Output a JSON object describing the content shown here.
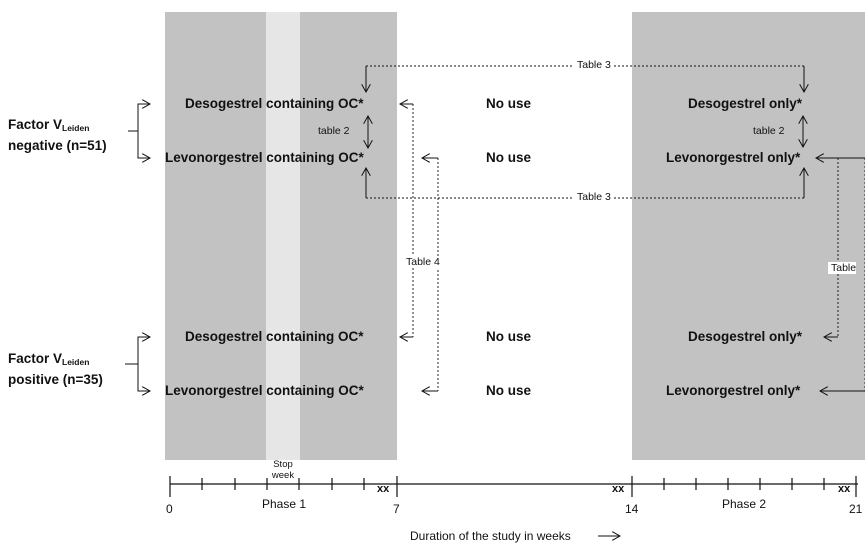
{
  "groups": {
    "negative": {
      "line1_prefix": "Factor V",
      "line1_sub": "Leiden",
      "line2": "negative (n=51)"
    },
    "positive": {
      "line1_prefix": "Factor V",
      "line1_sub": "Leiden",
      "line2": "positive (n=35)"
    }
  },
  "phase1_rows": {
    "neg_deso": "Desogestrel containing OC*",
    "neg_levo": "Levonorgestrel containing OC*",
    "pos_deso": "Desogestrel containing OC*",
    "pos_levo": "Levonorgestrel containing OC*"
  },
  "washout_rows": {
    "neg_deso": "No use",
    "neg_levo": "No use",
    "pos_deso": "No use",
    "pos_levo": "No use"
  },
  "phase2_rows": {
    "neg_deso": "Desogestrel only*",
    "neg_levo": "Levonorgestrel only*",
    "pos_deso": "Desogestrel only*",
    "pos_levo": "Levonorgestrel only*"
  },
  "table_refs": {
    "table3_top": "Table 3",
    "table3_bottom": "Table 3",
    "table2_left": "table 2",
    "table2_right": "table 2",
    "table4": "Table 4",
    "table_right": "Table"
  },
  "stop_week": {
    "line1": "Stop",
    "line2": "week"
  },
  "axis": {
    "ticks": [
      "0",
      "7",
      "14",
      "21"
    ],
    "phase1": "Phase 1",
    "phase2": "Phase 2",
    "break_mark": "xx",
    "title": "Duration of the study in weeks"
  }
}
